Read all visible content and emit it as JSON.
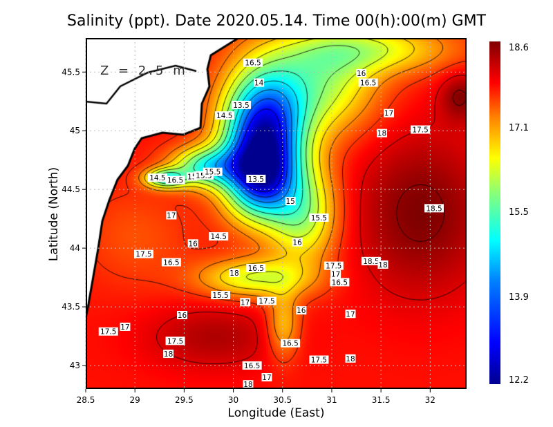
{
  "chart_data": {
    "type": "heatmap",
    "title": "Salinity (ppt). Date 2020.05.14. Time 00(h):00(m) GMT",
    "annotation": "Z = 2.5 m",
    "xlabel": "Longitude (East)",
    "ylabel": "Latitude (North)",
    "xlim": [
      28.5,
      32.37
    ],
    "ylim": [
      42.8,
      45.79
    ],
    "xticks": [
      "28.5",
      "29",
      "29.5",
      "30",
      "30.5",
      "31",
      "31.5",
      "32"
    ],
    "xtick_values": [
      28.5,
      29,
      29.5,
      30,
      30.5,
      31,
      31.5,
      32
    ],
    "yticks": [
      "43",
      "43.5",
      "44",
      "44.5",
      "45",
      "45.5"
    ],
    "ytick_values": [
      43,
      43.5,
      44,
      44.5,
      45,
      45.5
    ],
    "grid": true,
    "colorbar": {
      "ticks": [
        "18.6",
        "17.1",
        "15.5",
        "13.9",
        "12.2"
      ],
      "range": [
        12.2,
        18.6
      ],
      "colormap": "jet"
    },
    "contour_interval": 0.5,
    "contour_labels": [
      {
        "text": "16.5",
        "lon": 30.2,
        "lat": 45.58
      },
      {
        "text": "14",
        "lon": 30.26,
        "lat": 45.41
      },
      {
        "text": "13.5",
        "lon": 30.08,
        "lat": 45.22
      },
      {
        "text": "14.5",
        "lon": 29.91,
        "lat": 45.13
      },
      {
        "text": "16",
        "lon": 31.3,
        "lat": 45.49
      },
      {
        "text": "16.5",
        "lon": 31.37,
        "lat": 45.41
      },
      {
        "text": "17",
        "lon": 31.58,
        "lat": 45.15
      },
      {
        "text": "18",
        "lon": 31.51,
        "lat": 44.98
      },
      {
        "text": "17.5",
        "lon": 31.9,
        "lat": 45.01
      },
      {
        "text": "14.5",
        "lon": 29.23,
        "lat": 44.6
      },
      {
        "text": "16.5",
        "lon": 29.41,
        "lat": 44.58
      },
      {
        "text": "15",
        "lon": 29.58,
        "lat": 44.61
      },
      {
        "text": "15.5",
        "lon": 29.7,
        "lat": 44.62
      },
      {
        "text": "15.5",
        "lon": 29.79,
        "lat": 44.65
      },
      {
        "text": "13.5",
        "lon": 30.23,
        "lat": 44.59
      },
      {
        "text": "15",
        "lon": 30.58,
        "lat": 44.4
      },
      {
        "text": "18.5",
        "lon": 32.04,
        "lat": 44.34
      },
      {
        "text": "17",
        "lon": 29.37,
        "lat": 44.28
      },
      {
        "text": "15.5",
        "lon": 30.87,
        "lat": 44.26
      },
      {
        "text": "14.5",
        "lon": 29.85,
        "lat": 44.1
      },
      {
        "text": "16",
        "lon": 30.65,
        "lat": 44.05
      },
      {
        "text": "16",
        "lon": 29.59,
        "lat": 44.04
      },
      {
        "text": "17.5",
        "lon": 29.09,
        "lat": 43.95
      },
      {
        "text": "16.5",
        "lon": 29.37,
        "lat": 43.88
      },
      {
        "text": "16.5",
        "lon": 30.23,
        "lat": 43.83
      },
      {
        "text": "18",
        "lon": 30.01,
        "lat": 43.79
      },
      {
        "text": "17.5",
        "lon": 31.02,
        "lat": 43.85
      },
      {
        "text": "18.5",
        "lon": 31.4,
        "lat": 43.89
      },
      {
        "text": "18",
        "lon": 31.52,
        "lat": 43.86
      },
      {
        "text": "17",
        "lon": 31.04,
        "lat": 43.78
      },
      {
        "text": "16.5",
        "lon": 31.08,
        "lat": 43.71
      },
      {
        "text": "15.5",
        "lon": 29.87,
        "lat": 43.6
      },
      {
        "text": "17",
        "lon": 30.12,
        "lat": 43.54
      },
      {
        "text": "17.5",
        "lon": 30.34,
        "lat": 43.55
      },
      {
        "text": "16",
        "lon": 30.69,
        "lat": 43.47
      },
      {
        "text": "16",
        "lon": 29.48,
        "lat": 43.43
      },
      {
        "text": "17",
        "lon": 31.19,
        "lat": 43.44
      },
      {
        "text": "17.5",
        "lon": 28.73,
        "lat": 43.29
      },
      {
        "text": "17",
        "lon": 28.9,
        "lat": 43.33
      },
      {
        "text": "17.5",
        "lon": 29.41,
        "lat": 43.21
      },
      {
        "text": "16.5",
        "lon": 30.58,
        "lat": 43.19
      },
      {
        "text": "18",
        "lon": 29.34,
        "lat": 43.1
      },
      {
        "text": "17.5",
        "lon": 30.87,
        "lat": 43.05
      },
      {
        "text": "18",
        "lon": 31.19,
        "lat": 43.06
      },
      {
        "text": "16.5",
        "lon": 30.19,
        "lat": 43.0
      },
      {
        "text": "17",
        "lon": 30.34,
        "lat": 42.9
      },
      {
        "text": "18",
        "lon": 30.15,
        "lat": 42.84
      }
    ]
  }
}
